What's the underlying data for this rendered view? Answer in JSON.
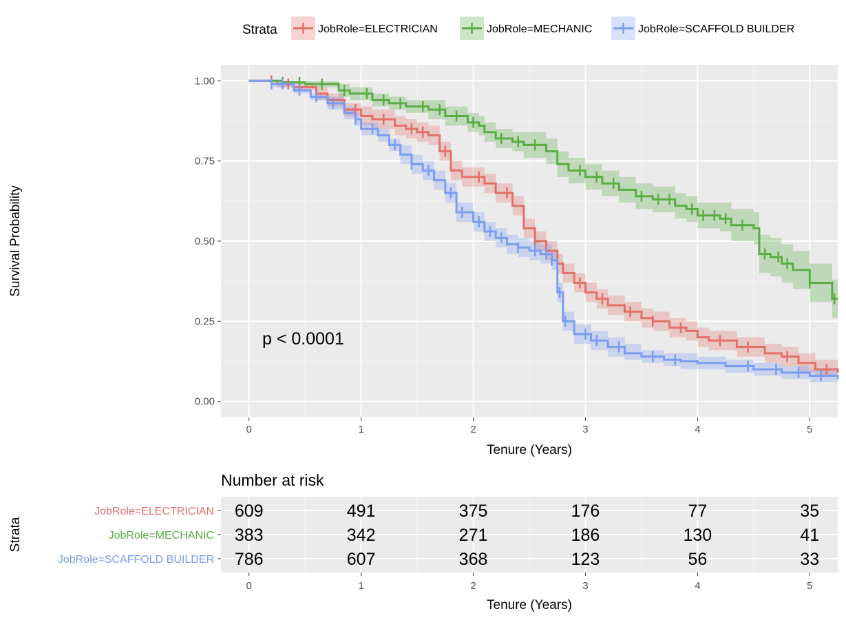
{
  "chart_data": [
    {
      "type": "line",
      "chart_kind": "kaplan-meier survival curve",
      "ylabel": "Survival Probability",
      "xlabel": "Tenure (Years)",
      "xlim": [
        -0.25,
        5.25
      ],
      "ylim": [
        -0.05,
        1.05
      ],
      "x_ticks": [
        0,
        1,
        2,
        3,
        4,
        5
      ],
      "x_tick_labels": [
        "0",
        "1",
        "2",
        "3",
        "4",
        "5"
      ],
      "y_ticks": [
        0,
        0.25,
        0.5,
        0.75,
        1
      ],
      "y_tick_labels": [
        "0.00",
        "0.25",
        "0.50",
        "0.75",
        "1.00"
      ],
      "grid": true,
      "annotation": "p < 0.0001",
      "legend": {
        "title": "Strata",
        "placement": "top",
        "entries": [
          "JobRole=ELECTRICIAN",
          "JobRole=MECHANIC",
          "JobRole=SCAFFOLD BUILDER"
        ]
      },
      "series": [
        {
          "name": "JobRole=ELECTRICIAN",
          "color": "#e1706a",
          "band_color": "#e1706a",
          "x": [
            0,
            0.25,
            0.4,
            0.6,
            0.7,
            0.85,
            1.0,
            1.1,
            1.3,
            1.4,
            1.5,
            1.6,
            1.7,
            1.8,
            1.9,
            2.1,
            2.2,
            2.35,
            2.45,
            2.55,
            2.65,
            2.75,
            2.8,
            2.9,
            3.0,
            3.1,
            3.2,
            3.35,
            3.5,
            3.6,
            3.75,
            3.9,
            4.0,
            4.1,
            4.35,
            4.6,
            4.75,
            4.9,
            5.05,
            5.25
          ],
          "y": [
            1.0,
            0.99,
            0.98,
            0.96,
            0.94,
            0.91,
            0.89,
            0.88,
            0.86,
            0.85,
            0.84,
            0.83,
            0.78,
            0.72,
            0.7,
            0.68,
            0.65,
            0.61,
            0.54,
            0.5,
            0.47,
            0.43,
            0.4,
            0.37,
            0.34,
            0.32,
            0.3,
            0.28,
            0.26,
            0.25,
            0.23,
            0.22,
            0.2,
            0.19,
            0.17,
            0.15,
            0.14,
            0.12,
            0.1,
            0.09
          ],
          "lower": [
            1.0,
            0.98,
            0.97,
            0.94,
            0.92,
            0.89,
            0.86,
            0.85,
            0.83,
            0.82,
            0.81,
            0.8,
            0.75,
            0.69,
            0.67,
            0.65,
            0.62,
            0.58,
            0.51,
            0.47,
            0.44,
            0.4,
            0.37,
            0.34,
            0.31,
            0.29,
            0.27,
            0.25,
            0.23,
            0.22,
            0.2,
            0.19,
            0.17,
            0.16,
            0.14,
            0.12,
            0.11,
            0.09,
            0.08,
            0.07
          ],
          "upper": [
            1.0,
            1.0,
            0.99,
            0.98,
            0.96,
            0.93,
            0.92,
            0.91,
            0.89,
            0.88,
            0.87,
            0.86,
            0.81,
            0.75,
            0.73,
            0.71,
            0.68,
            0.64,
            0.57,
            0.53,
            0.5,
            0.46,
            0.43,
            0.4,
            0.37,
            0.35,
            0.33,
            0.31,
            0.29,
            0.28,
            0.26,
            0.25,
            0.23,
            0.22,
            0.2,
            0.18,
            0.17,
            0.15,
            0.13,
            0.12
          ],
          "censor_x": [
            0.2,
            0.35,
            0.6,
            0.95,
            1.2,
            1.45,
            1.55,
            1.75,
            2.05,
            2.3,
            2.55,
            2.95,
            3.15,
            3.4,
            3.6,
            3.85,
            4.2,
            4.45,
            4.8,
            5.15
          ]
        },
        {
          "name": "JobRole=MECHANIC",
          "color": "#5aac44",
          "band_color": "#5aac44",
          "x": [
            0,
            0.3,
            0.5,
            0.8,
            0.9,
            1.1,
            1.25,
            1.4,
            1.6,
            1.75,
            1.95,
            2.05,
            2.1,
            2.2,
            2.35,
            2.45,
            2.65,
            2.75,
            2.85,
            3.0,
            3.15,
            3.3,
            3.45,
            3.6,
            3.8,
            3.9,
            4.0,
            4.2,
            4.3,
            4.5,
            4.55,
            4.65,
            4.75,
            4.85,
            5.0,
            5.2,
            5.25
          ],
          "y": [
            1.0,
            0.995,
            0.99,
            0.97,
            0.96,
            0.94,
            0.93,
            0.92,
            0.91,
            0.89,
            0.87,
            0.86,
            0.84,
            0.82,
            0.81,
            0.8,
            0.78,
            0.74,
            0.72,
            0.7,
            0.68,
            0.66,
            0.64,
            0.63,
            0.61,
            0.6,
            0.58,
            0.57,
            0.55,
            0.54,
            0.46,
            0.45,
            0.43,
            0.41,
            0.37,
            0.32,
            0.32
          ],
          "lower": [
            1.0,
            0.99,
            0.98,
            0.95,
            0.94,
            0.92,
            0.91,
            0.9,
            0.88,
            0.86,
            0.84,
            0.83,
            0.81,
            0.79,
            0.78,
            0.76,
            0.74,
            0.7,
            0.68,
            0.66,
            0.64,
            0.62,
            0.6,
            0.59,
            0.57,
            0.56,
            0.54,
            0.53,
            0.5,
            0.49,
            0.4,
            0.39,
            0.37,
            0.35,
            0.31,
            0.26,
            0.26
          ],
          "upper": [
            1.0,
            1.0,
            1.0,
            0.99,
            0.98,
            0.96,
            0.95,
            0.94,
            0.94,
            0.92,
            0.9,
            0.89,
            0.87,
            0.85,
            0.84,
            0.84,
            0.82,
            0.78,
            0.76,
            0.74,
            0.72,
            0.7,
            0.68,
            0.67,
            0.65,
            0.64,
            0.62,
            0.62,
            0.6,
            0.59,
            0.52,
            0.51,
            0.49,
            0.47,
            0.43,
            0.38,
            0.38
          ],
          "censor_x": [
            0.3,
            0.45,
            0.65,
            0.85,
            1.05,
            1.2,
            1.35,
            1.55,
            1.7,
            1.85,
            2.0,
            2.25,
            2.4,
            2.55,
            2.95,
            3.1,
            3.25,
            3.5,
            3.65,
            3.75,
            3.95,
            4.05,
            4.15,
            4.25,
            4.4,
            4.6,
            4.72,
            4.8,
            5.0,
            5.22
          ]
        },
        {
          "name": "JobRole=SCAFFOLD BUILDER",
          "color": "#7b9cf1",
          "band_color": "#7b9cf1",
          "x": [
            0,
            0.2,
            0.4,
            0.55,
            0.7,
            0.85,
            0.95,
            1.0,
            1.15,
            1.25,
            1.35,
            1.45,
            1.55,
            1.65,
            1.75,
            1.85,
            2.0,
            2.1,
            2.2,
            2.3,
            2.4,
            2.5,
            2.6,
            2.7,
            2.75,
            2.8,
            2.9,
            3.05,
            3.2,
            3.35,
            3.5,
            3.7,
            3.85,
            4.0,
            4.25,
            4.5,
            4.75,
            5.0,
            5.25
          ],
          "y": [
            1.0,
            0.99,
            0.97,
            0.95,
            0.93,
            0.9,
            0.88,
            0.85,
            0.83,
            0.8,
            0.77,
            0.74,
            0.72,
            0.69,
            0.65,
            0.59,
            0.56,
            0.53,
            0.51,
            0.49,
            0.48,
            0.47,
            0.46,
            0.44,
            0.34,
            0.25,
            0.21,
            0.19,
            0.17,
            0.15,
            0.14,
            0.13,
            0.125,
            0.12,
            0.11,
            0.1,
            0.09,
            0.08,
            0.07
          ],
          "lower": [
            1.0,
            0.98,
            0.96,
            0.94,
            0.91,
            0.88,
            0.86,
            0.83,
            0.81,
            0.78,
            0.74,
            0.71,
            0.69,
            0.66,
            0.62,
            0.56,
            0.53,
            0.5,
            0.48,
            0.46,
            0.45,
            0.44,
            0.43,
            0.41,
            0.31,
            0.22,
            0.18,
            0.16,
            0.14,
            0.13,
            0.12,
            0.11,
            0.1,
            0.1,
            0.09,
            0.08,
            0.07,
            0.06,
            0.05
          ],
          "upper": [
            1.0,
            1.0,
            0.98,
            0.96,
            0.95,
            0.92,
            0.9,
            0.87,
            0.85,
            0.82,
            0.8,
            0.77,
            0.75,
            0.72,
            0.68,
            0.62,
            0.59,
            0.56,
            0.54,
            0.52,
            0.51,
            0.5,
            0.49,
            0.47,
            0.37,
            0.28,
            0.24,
            0.22,
            0.2,
            0.18,
            0.16,
            0.15,
            0.15,
            0.14,
            0.13,
            0.12,
            0.11,
            0.1,
            0.09
          ],
          "censor_x": [
            0.2,
            0.3,
            0.45,
            0.6,
            0.75,
            0.95,
            1.1,
            1.3,
            1.45,
            1.6,
            1.8,
            1.9,
            2.05,
            2.15,
            2.25,
            2.4,
            2.55,
            2.65,
            2.7,
            2.77,
            2.82,
            3.0,
            3.1,
            3.3,
            3.6,
            3.8,
            4.45,
            4.7,
            4.9,
            5.1
          ]
        }
      ]
    },
    {
      "type": "table",
      "title": "Number at risk",
      "ylabel": "Strata",
      "xlabel": "Tenure (Years)",
      "xlim": [
        -0.25,
        5.25
      ],
      "x_ticks": [
        0,
        1,
        2,
        3,
        4,
        5
      ],
      "x_tick_labels": [
        "0",
        "1",
        "2",
        "3",
        "4",
        "5"
      ],
      "rows": [
        {
          "name": "JobRole=ELECTRICIAN",
          "color": "#e1706a",
          "values": [
            609,
            491,
            375,
            176,
            77,
            35
          ]
        },
        {
          "name": "JobRole=MECHANIC",
          "color": "#5aac44",
          "values": [
            383,
            342,
            271,
            186,
            130,
            41
          ]
        },
        {
          "name": "JobRole=SCAFFOLD BUILDER",
          "color": "#7b9cf1",
          "values": [
            786,
            607,
            368,
            123,
            56,
            33
          ]
        }
      ]
    }
  ]
}
